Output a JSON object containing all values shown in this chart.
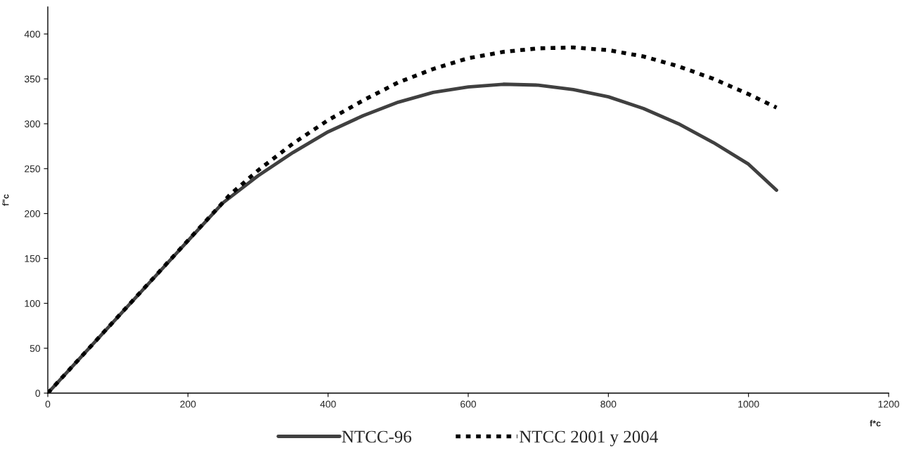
{
  "chart_data": {
    "type": "line",
    "xlabel": "f*c",
    "ylabel": "f\"c",
    "xlim": [
      0,
      1200
    ],
    "xticks": [
      0,
      200,
      400,
      600,
      800,
      1000,
      1200
    ],
    "ylim": [
      0,
      430
    ],
    "yticks": [
      0,
      50,
      100,
      150,
      200,
      250,
      300,
      350,
      400
    ],
    "grid": false,
    "legend": "bottom",
    "marker": "none",
    "series": [
      {
        "name": "NTCC-96",
        "color": "#404040",
        "line_style": "solid",
        "x": [
          0,
          250,
          300,
          350,
          400,
          450,
          500,
          550,
          600,
          650,
          700,
          750,
          800,
          850,
          900,
          950,
          1000,
          1040
        ],
        "values": [
          0,
          212,
          242,
          268,
          291,
          309,
          324,
          335,
          341,
          344,
          343,
          338,
          330,
          317,
          300,
          279,
          255,
          226
        ]
      },
      {
        "name": "NTCC 2001 y 2004",
        "color": "#000000",
        "line_style": "dashed",
        "x": [
          0,
          260,
          300,
          350,
          400,
          450,
          500,
          550,
          600,
          650,
          700,
          750,
          800,
          850,
          900,
          950,
          1000,
          1040
        ],
        "values": [
          0,
          221,
          248,
          278,
          304,
          326,
          346,
          361,
          373,
          380,
          384,
          385,
          382,
          375,
          364,
          350,
          333,
          318
        ]
      }
    ]
  }
}
